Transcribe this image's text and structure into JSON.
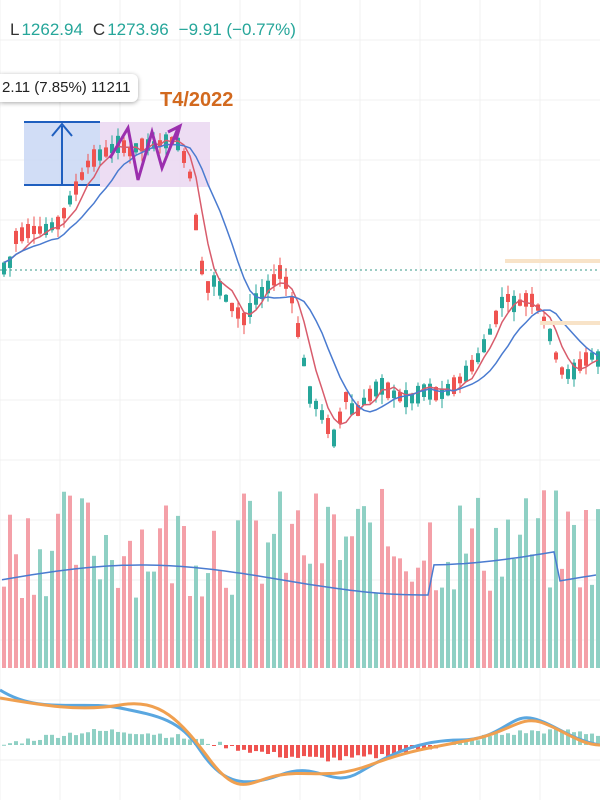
{
  "header": {
    "low_label": "L",
    "low_value": "1262.94",
    "close_label": "C",
    "close_value": "1273.96",
    "change_value": "−9.91",
    "change_percent": "(−0.77%)",
    "text_color": "#26a69a"
  },
  "tooltip": {
    "text": "2.11 (7.85%) 11211"
  },
  "annotation": {
    "period_label": "T4/2022",
    "label_color": "#d2691e",
    "highlight_color": "#e8d5f0",
    "measure_box_color": "#c9d7f5",
    "measure_line_color": "#1f5fbf",
    "zigzag_color": "#9b2fae"
  },
  "colors": {
    "up": "#26a69a",
    "down": "#ef5350",
    "ma_fast": "#d85c6c",
    "ma_slow": "#4a7bd0",
    "volume_up": "#8fd0c4",
    "volume_down": "#f4a0a8",
    "macd_line": "#5aa7e0",
    "signal_line": "#f0a050",
    "grid": "#f0f0f0",
    "price_line": "#3a9a8a"
  },
  "chart_data": {
    "type": "candlestick",
    "title": "",
    "grid": true,
    "indicators": [
      "moving averages",
      "volume with moving average",
      "MACD histogram with two lines"
    ],
    "note": "Values estimated from relative shape; no price axis is visible in the crop."
  }
}
